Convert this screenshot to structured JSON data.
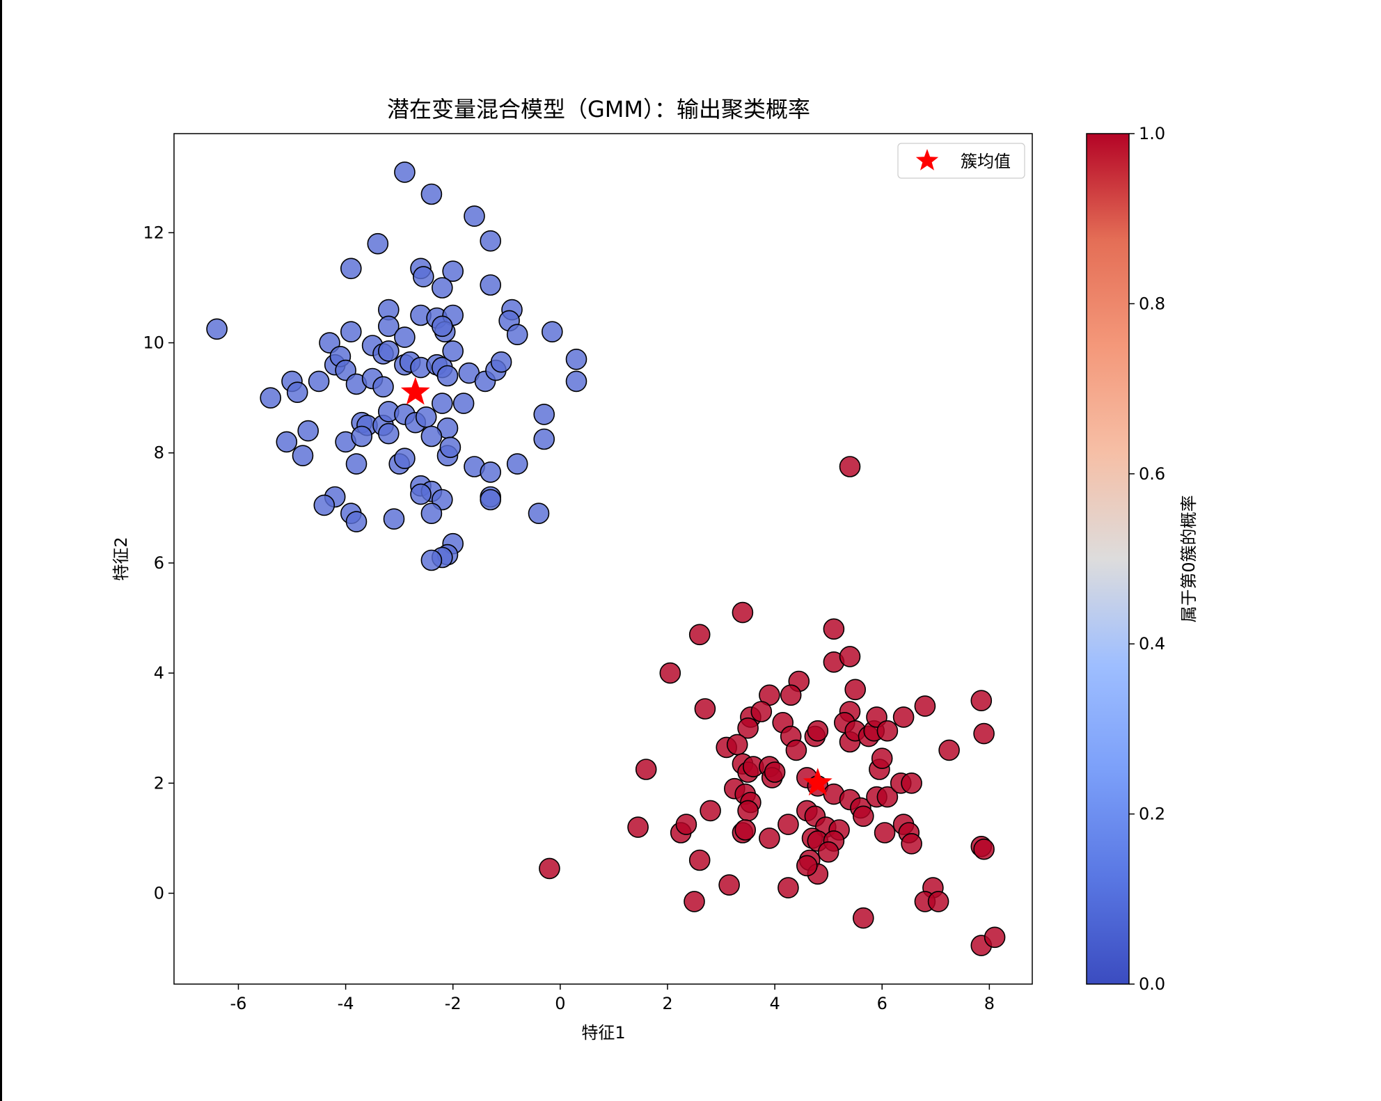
{
  "chart_data": {
    "type": "scatter",
    "title": "潜在变量混合模型（GMM）：输出聚类概率",
    "xlabel": "特征1",
    "ylabel": "特征2",
    "xlim": [
      -7.2,
      8.8
    ],
    "ylim": [
      -1.65,
      13.8
    ],
    "x_ticks": [
      -6,
      -4,
      -2,
      0,
      2,
      4,
      6,
      8
    ],
    "y_ticks": [
      0,
      2,
      4,
      6,
      8,
      10,
      12
    ],
    "grid": false,
    "legend": {
      "position": "top-right",
      "entries": [
        "簇均值"
      ]
    },
    "colorbar": {
      "label": "属于第0簇的概率",
      "range": [
        0.0,
        1.0
      ],
      "ticks": [
        "0.0",
        "0.2",
        "0.4",
        "0.6",
        "0.8",
        "1.0"
      ],
      "colormap": "coolwarm"
    },
    "colors": {
      "cluster_low": "#5a6fd6",
      "cluster_high": "#b40426",
      "mean_marker": "#ff0000",
      "point_edge": "#000000"
    },
    "cluster_means": [
      [
        -2.7,
        9.1
      ],
      [
        4.8,
        2.0
      ]
    ],
    "point_columns": [
      "x",
      "y",
      "probability"
    ],
    "points": [
      [
        -6.4,
        10.25,
        0
      ],
      [
        -5.4,
        9.0,
        0
      ],
      [
        -5.0,
        9.3,
        0
      ],
      [
        -4.9,
        9.1,
        0
      ],
      [
        -5.1,
        8.2,
        0
      ],
      [
        -4.7,
        8.4,
        0
      ],
      [
        -4.8,
        7.95,
        0
      ],
      [
        -4.5,
        9.3,
        0
      ],
      [
        -4.3,
        10.0,
        0
      ],
      [
        -4.2,
        9.6,
        0
      ],
      [
        -4.1,
        9.75,
        0
      ],
      [
        -4.0,
        9.5,
        0
      ],
      [
        -3.9,
        10.2,
        0
      ],
      [
        -3.8,
        9.25,
        0
      ],
      [
        -3.9,
        11.35,
        0
      ],
      [
        -3.4,
        11.8,
        0
      ],
      [
        -4.0,
        8.2,
        0
      ],
      [
        -3.7,
        8.55,
        0
      ],
      [
        -3.6,
        8.5,
        0
      ],
      [
        -3.7,
        8.3,
        0
      ],
      [
        -3.8,
        7.8,
        0
      ],
      [
        -4.2,
        7.2,
        0
      ],
      [
        -4.4,
        7.05,
        0
      ],
      [
        -3.9,
        6.9,
        0
      ],
      [
        -3.8,
        6.75,
        0
      ],
      [
        -3.5,
        9.35,
        0
      ],
      [
        -3.3,
        9.2,
        0
      ],
      [
        -3.5,
        9.95,
        0
      ],
      [
        -3.3,
        9.8,
        0
      ],
      [
        -3.2,
        9.85,
        0
      ],
      [
        -3.2,
        10.6,
        0
      ],
      [
        -3.2,
        10.3,
        0
      ],
      [
        -3.3,
        8.5,
        0
      ],
      [
        -3.2,
        8.75,
        0
      ],
      [
        -3.2,
        8.35,
        0
      ],
      [
        -3.0,
        7.8,
        0
      ],
      [
        -2.9,
        7.9,
        0
      ],
      [
        -3.1,
        6.8,
        0
      ],
      [
        -2.9,
        13.1,
        0
      ],
      [
        -2.4,
        12.7,
        0
      ],
      [
        -1.6,
        12.3,
        0
      ],
      [
        -1.3,
        11.85,
        0
      ],
      [
        -2.6,
        11.35,
        0
      ],
      [
        -2.55,
        11.2,
        0
      ],
      [
        -2.0,
        11.3,
        0
      ],
      [
        -2.2,
        11.0,
        0
      ],
      [
        -1.3,
        11.05,
        0
      ],
      [
        -2.6,
        10.5,
        0
      ],
      [
        -2.3,
        10.45,
        0
      ],
      [
        -2.0,
        10.5,
        0
      ],
      [
        -2.15,
        10.2,
        0
      ],
      [
        -2.2,
        10.3,
        0
      ],
      [
        -2.9,
        10.1,
        0
      ],
      [
        -2.9,
        9.6,
        0
      ],
      [
        -2.8,
        9.65,
        0
      ],
      [
        -2.6,
        9.55,
        0
      ],
      [
        -2.3,
        9.6,
        0
      ],
      [
        -2.2,
        9.55,
        0
      ],
      [
        -2.1,
        9.4,
        0
      ],
      [
        -2.0,
        9.85,
        0
      ],
      [
        -1.7,
        9.45,
        0
      ],
      [
        -1.4,
        9.3,
        0
      ],
      [
        -1.2,
        9.5,
        0
      ],
      [
        -1.1,
        9.65,
        0
      ],
      [
        -0.9,
        10.6,
        0
      ],
      [
        -0.95,
        10.4,
        0
      ],
      [
        -0.8,
        10.15,
        0
      ],
      [
        -0.15,
        10.2,
        0
      ],
      [
        0.3,
        9.7,
        0
      ],
      [
        0.3,
        9.3,
        0
      ],
      [
        -2.9,
        8.7,
        0
      ],
      [
        -2.7,
        8.55,
        0
      ],
      [
        -2.5,
        8.65,
        0
      ],
      [
        -2.2,
        8.9,
        0
      ],
      [
        -1.8,
        8.9,
        0
      ],
      [
        -2.1,
        8.45,
        0
      ],
      [
        -2.4,
        8.3,
        0
      ],
      [
        -2.1,
        7.95,
        0
      ],
      [
        -2.05,
        8.1,
        0
      ],
      [
        -1.6,
        7.75,
        0
      ],
      [
        -1.3,
        7.65,
        0
      ],
      [
        -0.8,
        7.8,
        0
      ],
      [
        -0.3,
        8.7,
        0
      ],
      [
        -0.3,
        8.25,
        0
      ],
      [
        -1.3,
        7.2,
        0
      ],
      [
        -1.3,
        7.15,
        0
      ],
      [
        -0.4,
        6.9,
        0
      ],
      [
        -2.6,
        7.4,
        0
      ],
      [
        -2.4,
        7.3,
        0
      ],
      [
        -2.6,
        7.25,
        0
      ],
      [
        -2.2,
        7.15,
        0
      ],
      [
        -2.4,
        6.9,
        0
      ],
      [
        -2.0,
        6.35,
        0
      ],
      [
        -2.1,
        6.15,
        0
      ],
      [
        -2.2,
        6.1,
        0
      ],
      [
        -2.4,
        6.05,
        0
      ],
      [
        3.4,
        5.1,
        1
      ],
      [
        2.6,
        4.7,
        1
      ],
      [
        5.1,
        4.8,
        1
      ],
      [
        5.1,
        4.2,
        1
      ],
      [
        5.4,
        4.3,
        1
      ],
      [
        2.05,
        4.0,
        1
      ],
      [
        5.4,
        7.75,
        1
      ],
      [
        4.45,
        3.85,
        1
      ],
      [
        4.3,
        3.6,
        1
      ],
      [
        3.9,
        3.6,
        1
      ],
      [
        5.5,
        3.7,
        1
      ],
      [
        2.7,
        3.35,
        1
      ],
      [
        3.55,
        3.2,
        1
      ],
      [
        3.75,
        3.3,
        1
      ],
      [
        5.4,
        3.3,
        1
      ],
      [
        5.3,
        3.1,
        1
      ],
      [
        4.15,
        3.1,
        1
      ],
      [
        3.5,
        3.0,
        1
      ],
      [
        4.3,
        2.85,
        1
      ],
      [
        4.75,
        2.85,
        1
      ],
      [
        4.8,
        2.95,
        1
      ],
      [
        5.4,
        2.75,
        1
      ],
      [
        5.5,
        2.95,
        1
      ],
      [
        5.75,
        2.85,
        1
      ],
      [
        5.85,
        2.95,
        1
      ],
      [
        5.9,
        3.2,
        1
      ],
      [
        6.1,
        2.95,
        1
      ],
      [
        6.4,
        3.2,
        1
      ],
      [
        6.8,
        3.4,
        1
      ],
      [
        7.85,
        3.5,
        1
      ],
      [
        7.9,
        2.9,
        1
      ],
      [
        7.25,
        2.6,
        1
      ],
      [
        3.1,
        2.65,
        1
      ],
      [
        3.3,
        2.7,
        1
      ],
      [
        4.4,
        2.6,
        1
      ],
      [
        3.4,
        2.35,
        1
      ],
      [
        3.5,
        2.2,
        1
      ],
      [
        3.6,
        2.3,
        1
      ],
      [
        3.9,
        2.3,
        1
      ],
      [
        3.95,
        2.1,
        1
      ],
      [
        4.0,
        2.2,
        1
      ],
      [
        1.6,
        2.25,
        1
      ],
      [
        4.6,
        2.1,
        1
      ],
      [
        4.8,
        1.95,
        1
      ],
      [
        5.1,
        1.8,
        1
      ],
      [
        5.4,
        1.7,
        1
      ],
      [
        5.6,
        1.55,
        1
      ],
      [
        5.65,
        1.4,
        1
      ],
      [
        5.9,
        1.75,
        1
      ],
      [
        6.1,
        1.75,
        1
      ],
      [
        5.95,
        2.25,
        1
      ],
      [
        6.0,
        2.45,
        1
      ],
      [
        6.35,
        2.0,
        1
      ],
      [
        6.55,
        2.0,
        1
      ],
      [
        3.25,
        1.9,
        1
      ],
      [
        3.45,
        1.8,
        1
      ],
      [
        3.55,
        1.65,
        1
      ],
      [
        3.5,
        1.5,
        1
      ],
      [
        2.8,
        1.5,
        1
      ],
      [
        4.25,
        1.25,
        1
      ],
      [
        4.6,
        1.5,
        1
      ],
      [
        4.75,
        1.4,
        1
      ],
      [
        4.95,
        1.2,
        1
      ],
      [
        5.2,
        1.15,
        1
      ],
      [
        4.7,
        1.0,
        1
      ],
      [
        4.8,
        0.95,
        1
      ],
      [
        5.1,
        0.95,
        1
      ],
      [
        5.0,
        0.75,
        1
      ],
      [
        4.65,
        0.6,
        1
      ],
      [
        4.8,
        0.35,
        1
      ],
      [
        4.6,
        0.5,
        1
      ],
      [
        1.45,
        1.2,
        1
      ],
      [
        2.25,
        1.1,
        1
      ],
      [
        2.35,
        1.25,
        1
      ],
      [
        3.4,
        1.1,
        1
      ],
      [
        3.45,
        1.15,
        1
      ],
      [
        3.9,
        1.0,
        1
      ],
      [
        6.05,
        1.1,
        1
      ],
      [
        6.4,
        1.25,
        1
      ],
      [
        6.5,
        1.1,
        1
      ],
      [
        6.55,
        0.9,
        1
      ],
      [
        2.6,
        0.6,
        1
      ],
      [
        3.15,
        0.15,
        1
      ],
      [
        4.25,
        0.1,
        1
      ],
      [
        2.5,
        -0.15,
        1
      ],
      [
        -0.2,
        0.45,
        1
      ],
      [
        5.65,
        -0.45,
        1
      ],
      [
        6.95,
        0.1,
        1
      ],
      [
        6.8,
        -0.15,
        1
      ],
      [
        7.05,
        -0.15,
        1
      ],
      [
        7.85,
        0.85,
        1
      ],
      [
        7.9,
        0.8,
        1
      ],
      [
        7.85,
        -0.95,
        1
      ],
      [
        8.1,
        -0.8,
        1
      ]
    ]
  }
}
